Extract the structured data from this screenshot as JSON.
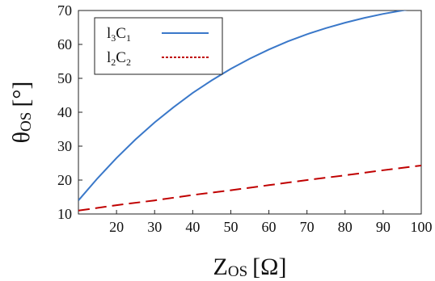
{
  "chart_data": {
    "type": "line",
    "xlabel": {
      "main": "Z",
      "sub": "OS",
      "unit": "[Ω]"
    },
    "ylabel": {
      "main": "θ",
      "sub": "OS",
      "unit": "[°]"
    },
    "xlim": [
      10,
      100
    ],
    "ylim": [
      10,
      70
    ],
    "xticks": [
      20,
      30,
      40,
      50,
      60,
      70,
      80,
      90,
      100
    ],
    "yticks": [
      10,
      20,
      30,
      40,
      50,
      60,
      70
    ],
    "grid": false,
    "legend_position": "top-left",
    "series": [
      {
        "name": "l3C1",
        "label_main_1": "l",
        "label_sub_1": "3",
        "label_main_2": "C",
        "label_sub_2": "1",
        "color": "#3a78c9",
        "style": "solid",
        "x": [
          10,
          15,
          20,
          25,
          30,
          35,
          40,
          45,
          50,
          55,
          60,
          65,
          70,
          75,
          80,
          85,
          90,
          95,
          100
        ],
        "y": [
          14.0,
          20.5,
          26.5,
          32.0,
          37.0,
          41.5,
          45.7,
          49.4,
          52.8,
          55.8,
          58.5,
          60.9,
          63.0,
          64.8,
          66.4,
          67.8,
          69.0,
          70.0,
          70.9
        ]
      },
      {
        "name": "l2C2",
        "label_main_1": "l",
        "label_sub_1": "2",
        "label_main_2": "C",
        "label_sub_2": "2",
        "color": "#c00000",
        "style": "dashed",
        "x": [
          10,
          20,
          30,
          40,
          50,
          60,
          70,
          80,
          90,
          100
        ],
        "y": [
          11.0,
          12.6,
          14.0,
          15.6,
          17.0,
          18.5,
          20.0,
          21.4,
          22.9,
          24.3
        ]
      }
    ]
  }
}
